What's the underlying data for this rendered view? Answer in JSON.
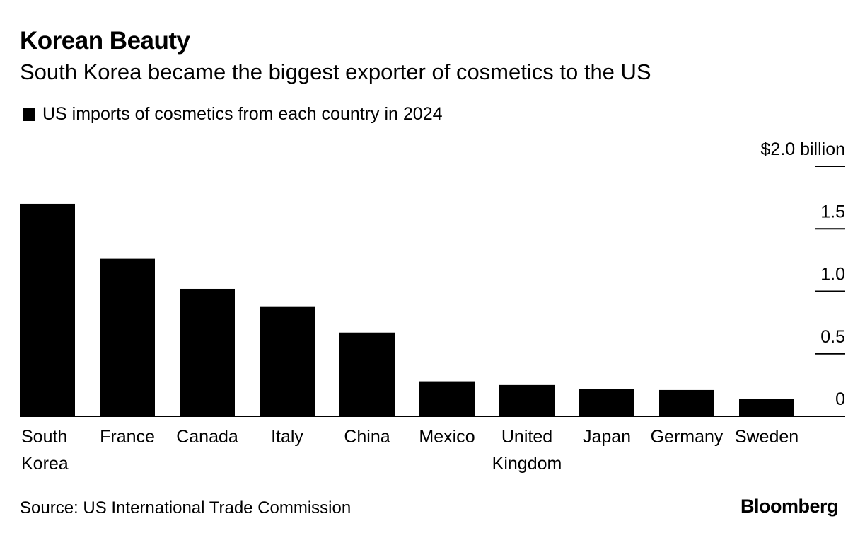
{
  "header": {
    "title": "Korean Beauty",
    "subtitle": "South Korea became the biggest exporter of cosmetics to the US"
  },
  "legend": {
    "label": "US imports of cosmetics from each country in 2024",
    "color": "#000000"
  },
  "footer": {
    "source": "Source: US International Trade Commission",
    "brand": "Bloomberg"
  },
  "chart_data": {
    "type": "bar",
    "title": "Korean Beauty",
    "subtitle": "South Korea became the biggest exporter of cosmetics to the US",
    "xlabel": "",
    "ylabel": "",
    "ylim": [
      0,
      2.0
    ],
    "unit": "$ billion",
    "categories": [
      [
        "South",
        "Korea"
      ],
      [
        "France"
      ],
      [
        "Canada"
      ],
      [
        "Italy"
      ],
      [
        "China"
      ],
      [
        "Mexico"
      ],
      [
        "United",
        "Kingdom"
      ],
      [
        "Japan"
      ],
      [
        "Germany"
      ],
      [
        "Sweden"
      ]
    ],
    "series": [
      {
        "name": "US imports of cosmetics from each country in 2024",
        "color": "#000000",
        "values": [
          1.7,
          1.26,
          1.02,
          0.88,
          0.67,
          0.28,
          0.25,
          0.22,
          0.21,
          0.14
        ]
      }
    ],
    "y_ticks": [
      {
        "value": 0,
        "label": "0"
      },
      {
        "value": 0.5,
        "label": "0.5"
      },
      {
        "value": 1.0,
        "label": "1.0"
      },
      {
        "value": 1.5,
        "label": "1.5"
      },
      {
        "value": 2.0,
        "label": "$2.0 billion"
      }
    ],
    "axis_position": "right"
  }
}
